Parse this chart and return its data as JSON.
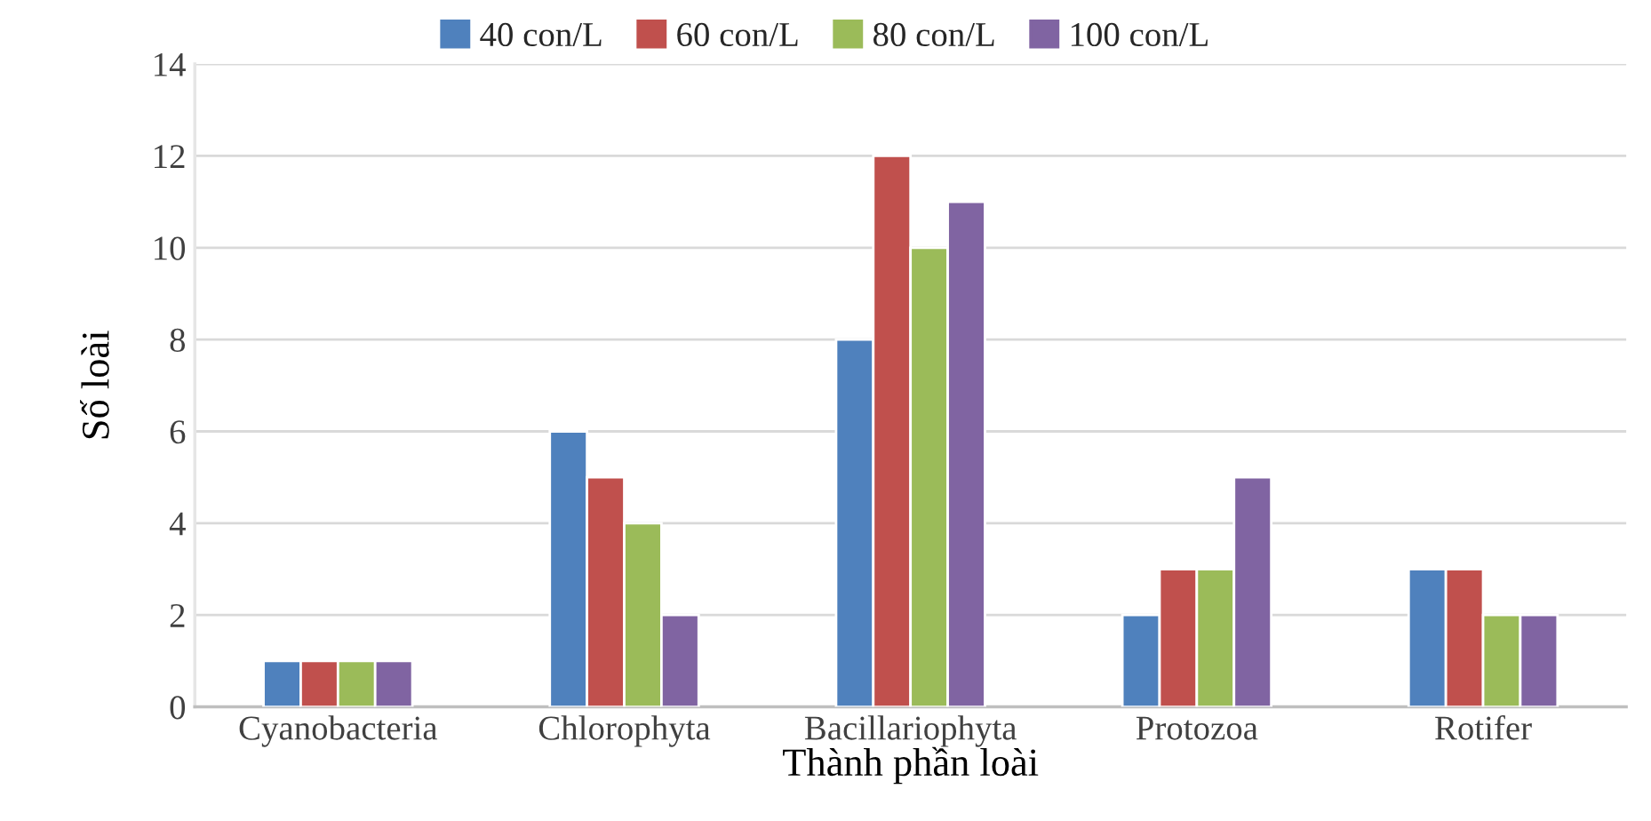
{
  "chart_data": {
    "type": "bar",
    "xlabel": "Thành phần loài",
    "ylabel": "Số loài",
    "categories": [
      "Cyanobacteria",
      "Chlorophyta",
      "Bacillariophyta",
      "Protozoa",
      "Rotifer"
    ],
    "series": [
      {
        "name": "40 con/L",
        "color": "#4f81bd",
        "values": [
          1,
          6,
          8,
          2,
          3
        ]
      },
      {
        "name": "60 con/L",
        "color": "#c0504d",
        "values": [
          1,
          5,
          12,
          3,
          3
        ]
      },
      {
        "name": "80 con/L",
        "color": "#9bbb59",
        "values": [
          1,
          4,
          10,
          3,
          2
        ]
      },
      {
        "name": "100 con/L",
        "color": "#8064a2",
        "values": [
          1,
          2,
          11,
          5,
          2
        ]
      }
    ],
    "ylim": [
      0,
      14
    ],
    "yticks": [
      0,
      2,
      4,
      6,
      8,
      10,
      12,
      14
    ],
    "grid": "y",
    "legend": "top"
  }
}
